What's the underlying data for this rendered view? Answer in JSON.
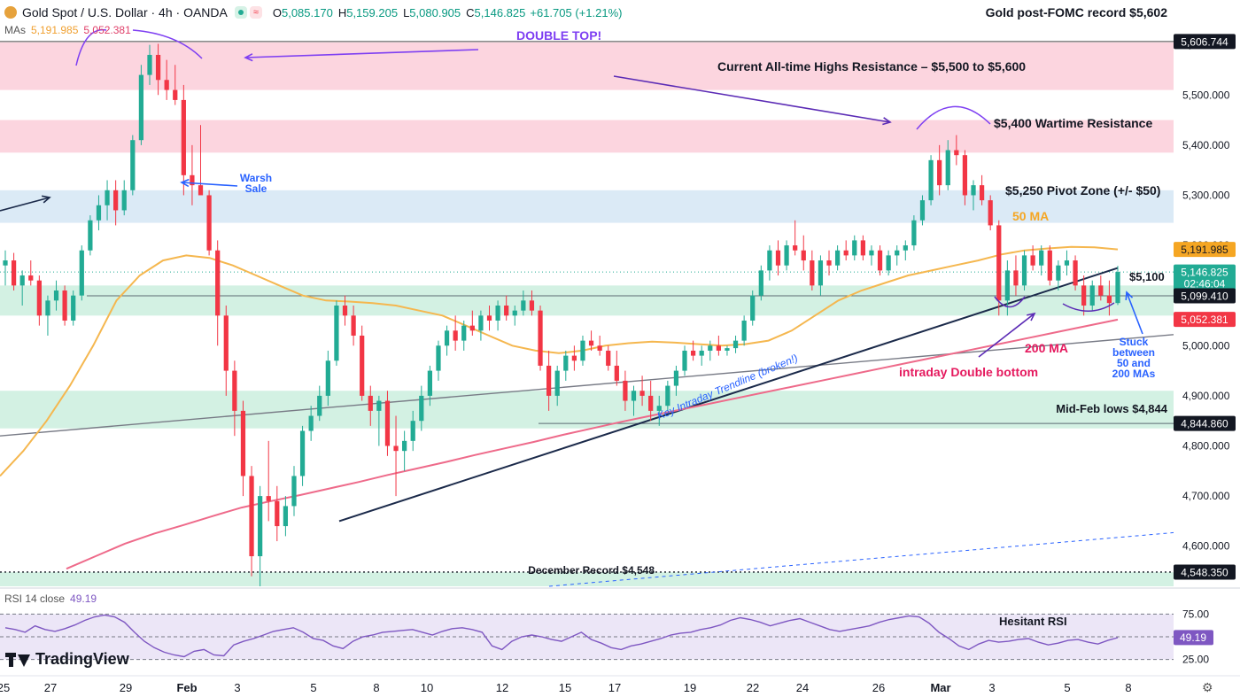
{
  "header": {
    "symbol": "Gold Spot / U.S. Dollar · 4h · OANDA",
    "open_label": "O",
    "open": "5,085.170",
    "high_label": "H",
    "high": "5,159.205",
    "low_label": "L",
    "low": "5,080.905",
    "close_label": "C",
    "close": "5,146.825",
    "change": "+61.705 (+1.21%)",
    "right_title": "Gold post-FOMC record $5,602"
  },
  "mas_legend": {
    "label": "MAs",
    "ma50": "5,191.985",
    "ma200": "5,052.381"
  },
  "rsi_legend": {
    "label": "RSI 14 close",
    "value": "49.19"
  },
  "branding": {
    "name": "TradingView"
  },
  "colors": {
    "up": "#22ab94",
    "down": "#f23645",
    "ma50": "#f5b74f",
    "ma200": "#ee6a8a",
    "resistance_zone": "#fcd5df",
    "pivot_zone": "#dbeaf6",
    "support_zone": "#d3f1e3",
    "rsi": "#7e57c2",
    "rsi_band": "#ece6f7"
  },
  "chart_data": {
    "type": "candlestick",
    "title": "Gold Spot / U.S. Dollar · 4h · OANDA",
    "y_axis": {
      "min": 4520,
      "max": 5640,
      "ticks": [
        4600,
        4700,
        4800,
        4900,
        5000,
        5100,
        5200,
        5300,
        5400,
        5500,
        5600
      ],
      "tick_labels": [
        "4,600.000",
        "4,700.000",
        "4,800.000",
        "4,900.000",
        "5,000.000",
        "5,100.000",
        "5,200.000",
        "5,300.000",
        "5,400.000",
        "5,500.000",
        "5,600.000"
      ]
    },
    "x_axis": {
      "labels": [
        "25",
        "27",
        "29",
        "Feb",
        "3",
        "5",
        "8",
        "10",
        "12",
        "15",
        "17",
        "19",
        "22",
        "24",
        "26",
        "Mar",
        "3",
        "5",
        "8"
      ]
    },
    "price_tags": [
      {
        "label": "5,606.744",
        "value": 5606.744,
        "kind": "dark"
      },
      {
        "label": "5,191.985",
        "value": 5191.985,
        "kind": "ma50"
      },
      {
        "label": "5,146.825",
        "sublabel": "02:46:04",
        "value": 5146.825,
        "kind": "last"
      },
      {
        "label": "5,099.410",
        "value": 5099.41,
        "kind": "dark"
      },
      {
        "label": "5,052.381",
        "value": 5052.381,
        "kind": "ma200"
      },
      {
        "label": "4,844.860",
        "value": 4844.86,
        "kind": "dark"
      },
      {
        "label": "4,548.350",
        "value": 4548.35,
        "kind": "dark"
      }
    ],
    "zones": [
      {
        "name": "Current All-time Highs Resistance",
        "from": 5510,
        "to": 5605,
        "kind": "resistance"
      },
      {
        "name": "$5,400 Wartime Resistance",
        "from": 5385,
        "to": 5450,
        "kind": "resistance"
      },
      {
        "name": "$5,250 Pivot Zone",
        "from": 5245,
        "to": 5310,
        "kind": "pivot"
      },
      {
        "name": "$5,100 zone",
        "from": 5060,
        "to": 5120,
        "kind": "support"
      },
      {
        "name": "Mid-Feb lows zone",
        "from": 4835,
        "to": 4910,
        "kind": "support"
      },
      {
        "name": "December Record zone",
        "from": 4520,
        "to": 4548,
        "kind": "support"
      }
    ],
    "candles": [
      [
        5160,
        5190,
        5120,
        5170
      ],
      [
        5170,
        5185,
        5110,
        5120
      ],
      [
        5120,
        5150,
        5080,
        5140
      ],
      [
        5140,
        5170,
        5120,
        5130
      ],
      [
        5130,
        5140,
        5040,
        5060
      ],
      [
        5060,
        5100,
        5020,
        5090
      ],
      [
        5090,
        5130,
        5070,
        5110
      ],
      [
        5110,
        5120,
        5040,
        5050
      ],
      [
        5050,
        5110,
        5040,
        5100
      ],
      [
        5100,
        5200,
        5090,
        5190
      ],
      [
        5190,
        5260,
        5180,
        5250
      ],
      [
        5250,
        5300,
        5230,
        5280
      ],
      [
        5280,
        5330,
        5250,
        5310
      ],
      [
        5310,
        5330,
        5240,
        5270
      ],
      [
        5270,
        5330,
        5260,
        5310
      ],
      [
        5310,
        5420,
        5300,
        5410
      ],
      [
        5410,
        5560,
        5400,
        5540
      ],
      [
        5540,
        5600,
        5520,
        5580
      ],
      [
        5580,
        5602,
        5500,
        5530
      ],
      [
        5530,
        5570,
        5490,
        5510
      ],
      [
        5510,
        5560,
        5480,
        5490
      ],
      [
        5490,
        5520,
        5300,
        5340
      ],
      [
        5340,
        5400,
        5280,
        5320
      ],
      [
        5320,
        5440,
        5310,
        5300
      ],
      [
        5300,
        5310,
        5180,
        5190
      ],
      [
        5190,
        5210,
        5000,
        5060
      ],
      [
        5060,
        5080,
        4900,
        4950
      ],
      [
        4950,
        4970,
        4820,
        4870
      ],
      [
        4870,
        4890,
        4700,
        4740
      ],
      [
        4740,
        4760,
        4540,
        4580
      ],
      [
        4580,
        4720,
        4520,
        4700
      ],
      [
        4700,
        4810,
        4650,
        4690
      ],
      [
        4690,
        4720,
        4610,
        4640
      ],
      [
        4640,
        4700,
        4620,
        4680
      ],
      [
        4680,
        4760,
        4660,
        4740
      ],
      [
        4740,
        4840,
        4720,
        4830
      ],
      [
        4830,
        4880,
        4810,
        4860
      ],
      [
        4860,
        4920,
        4850,
        4900
      ],
      [
        4900,
        4990,
        4880,
        4970
      ],
      [
        4970,
        5090,
        4960,
        5080
      ],
      [
        5080,
        5100,
        5040,
        5060
      ],
      [
        5060,
        5080,
        5000,
        5020
      ],
      [
        5020,
        5040,
        4890,
        4900
      ],
      [
        4900,
        4920,
        4840,
        4870
      ],
      [
        4870,
        4900,
        4800,
        4890
      ],
      [
        4890,
        4910,
        4780,
        4800
      ],
      [
        4800,
        4860,
        4700,
        4790
      ],
      [
        4790,
        4830,
        4750,
        4810
      ],
      [
        4810,
        4870,
        4790,
        4850
      ],
      [
        4850,
        4920,
        4830,
        4900
      ],
      [
        4900,
        4960,
        4880,
        4950
      ],
      [
        4950,
        5010,
        4930,
        5000
      ],
      [
        5000,
        5040,
        4980,
        5030
      ],
      [
        5030,
        5060,
        4990,
        5010
      ],
      [
        5010,
        5050,
        4990,
        5040
      ],
      [
        5040,
        5070,
        5020,
        5030
      ],
      [
        5030,
        5070,
        5010,
        5060
      ],
      [
        5060,
        5080,
        5030,
        5050
      ],
      [
        5050,
        5090,
        5030,
        5080
      ],
      [
        5080,
        5100,
        5050,
        5060
      ],
      [
        5060,
        5080,
        5040,
        5070
      ],
      [
        5070,
        5110,
        5060,
        5090
      ],
      [
        5090,
        5110,
        5060,
        5070
      ],
      [
        5070,
        5080,
        4950,
        4960
      ],
      [
        4960,
        4990,
        4870,
        4900
      ],
      [
        4900,
        4960,
        4880,
        4950
      ],
      [
        4950,
        4990,
        4930,
        4980
      ],
      [
        4980,
        5000,
        4950,
        4970
      ],
      [
        4970,
        5020,
        4960,
        5010
      ],
      [
        5010,
        5030,
        4990,
        5000
      ],
      [
        5000,
        5020,
        4980,
        4990
      ],
      [
        4990,
        5000,
        4950,
        4960
      ],
      [
        4960,
        4990,
        4920,
        4930
      ],
      [
        4930,
        4950,
        4870,
        4890
      ],
      [
        4890,
        4920,
        4860,
        4910
      ],
      [
        4910,
        4940,
        4880,
        4900
      ],
      [
        4900,
        4930,
        4850,
        4870
      ],
      [
        4870,
        4900,
        4840,
        4880
      ],
      [
        4880,
        4930,
        4870,
        4920
      ],
      [
        4920,
        4960,
        4900,
        4950
      ],
      [
        4950,
        5000,
        4940,
        4990
      ],
      [
        4990,
        5010,
        4970,
        4980
      ],
      [
        4980,
        5000,
        4960,
        4990
      ],
      [
        4990,
        5010,
        4970,
        5000
      ],
      [
        5000,
        5020,
        4980,
        4990
      ],
      [
        4990,
        5000,
        4980,
        4995
      ],
      [
        4995,
        5020,
        4985,
        5010
      ],
      [
        5010,
        5060,
        5000,
        5050
      ],
      [
        5050,
        5110,
        5040,
        5100
      ],
      [
        5100,
        5160,
        5090,
        5150
      ],
      [
        5150,
        5200,
        5130,
        5190
      ],
      [
        5190,
        5210,
        5140,
        5160
      ],
      [
        5160,
        5210,
        5150,
        5200
      ],
      [
        5200,
        5250,
        5180,
        5190
      ],
      [
        5190,
        5220,
        5150,
        5170
      ],
      [
        5170,
        5190,
        5110,
        5120
      ],
      [
        5120,
        5180,
        5100,
        5170
      ],
      [
        5170,
        5190,
        5140,
        5160
      ],
      [
        5160,
        5200,
        5150,
        5190
      ],
      [
        5190,
        5210,
        5170,
        5180
      ],
      [
        5180,
        5220,
        5170,
        5210
      ],
      [
        5210,
        5220,
        5170,
        5180
      ],
      [
        5180,
        5200,
        5160,
        5190
      ],
      [
        5190,
        5200,
        5140,
        5150
      ],
      [
        5150,
        5190,
        5140,
        5180
      ],
      [
        5180,
        5200,
        5160,
        5190
      ],
      [
        5190,
        5210,
        5170,
        5200
      ],
      [
        5200,
        5260,
        5190,
        5250
      ],
      [
        5250,
        5300,
        5240,
        5290
      ],
      [
        5290,
        5380,
        5280,
        5370
      ],
      [
        5370,
        5400,
        5300,
        5320
      ],
      [
        5320,
        5410,
        5310,
        5390
      ],
      [
        5390,
        5420,
        5360,
        5380
      ],
      [
        5380,
        5390,
        5280,
        5300
      ],
      [
        5300,
        5330,
        5270,
        5320
      ],
      [
        5320,
        5340,
        5280,
        5290
      ],
      [
        5290,
        5300,
        5230,
        5240
      ],
      [
        5240,
        5250,
        5060,
        5090
      ],
      [
        5090,
        5170,
        5060,
        5150
      ],
      [
        5150,
        5180,
        5100,
        5120
      ],
      [
        5120,
        5190,
        5110,
        5180
      ],
      [
        5180,
        5200,
        5150,
        5160
      ],
      [
        5160,
        5200,
        5140,
        5190
      ],
      [
        5190,
        5200,
        5120,
        5130
      ],
      [
        5130,
        5170,
        5110,
        5160
      ],
      [
        5160,
        5190,
        5140,
        5170
      ],
      [
        5170,
        5180,
        5110,
        5120
      ],
      [
        5120,
        5140,
        5060,
        5080
      ],
      [
        5080,
        5130,
        5070,
        5120
      ],
      [
        5120,
        5140,
        5090,
        5100
      ],
      [
        5100,
        5130,
        5060,
        5085
      ],
      [
        5085,
        5159,
        5081,
        5147
      ]
    ],
    "ma50": [
      4740,
      4790,
      4850,
      4920,
      5000,
      5090,
      5140,
      5170,
      5180,
      5175,
      5160,
      5140,
      5120,
      5100,
      5090,
      5088,
      5085,
      5080,
      5070,
      5060,
      5040,
      5020,
      5000,
      4990,
      4985,
      4990,
      5000,
      5005,
      5008,
      5006,
      5003,
      5000,
      5003,
      5010,
      5030,
      5060,
      5090,
      5110,
      5125,
      5140,
      5150,
      5160,
      5170,
      5182,
      5190,
      5194,
      5197,
      5196,
      5192
    ],
    "ma200": [
      4555,
      4580,
      4605,
      4625,
      4642,
      4660,
      4677,
      4690,
      4702,
      4715,
      4728,
      4742,
      4755,
      4768,
      4782,
      4795,
      4808,
      4822,
      4835,
      4848,
      4860,
      4872,
      4884,
      4896,
      4908,
      4920,
      4932,
      4944,
      4956,
      4968,
      4980,
      4992,
      5004,
      5016,
      5028,
      5040,
      5052
    ],
    "annotations": [
      {
        "text": "DOUBLE TOP!",
        "color": "#7e3ff2"
      },
      {
        "text": "Current All-time Highs Resistance – $5,500 to $5,600",
        "color": "#131722"
      },
      {
        "text": "$5,400 Wartime Resistance",
        "color": "#131722"
      },
      {
        "text": "$5,250 Pivot Zone (+/- $50)",
        "color": "#131722"
      },
      {
        "text": "50 MA",
        "color": "#f5a623"
      },
      {
        "text": "$5,100",
        "color": "#131722"
      },
      {
        "text": "200 MA",
        "color": "#e5195e"
      },
      {
        "text": "intraday Double bottom",
        "color": "#e5195e"
      },
      {
        "text": "Stuck between 50 and 200 MAs",
        "color": "#2962ff"
      },
      {
        "text": "Mid-Feb lows $4,844",
        "color": "#131722"
      },
      {
        "text": "December Record $4,548",
        "color": "#131722"
      },
      {
        "text": "Key Intraday Trendline (broken!)",
        "color": "#2962ff"
      },
      {
        "text": "Warsh Sale",
        "color": "#2962ff"
      },
      {
        "text": "Hesitant RSI",
        "color": "#131722"
      }
    ],
    "rsi": {
      "levels": [
        75,
        50,
        25
      ],
      "level_labels": [
        "75.00",
        "25.00"
      ],
      "last": 49.19,
      "values": [
        60,
        58,
        55,
        62,
        58,
        56,
        59,
        63,
        68,
        72,
        74,
        72,
        66,
        55,
        45,
        38,
        33,
        30,
        28,
        34,
        36,
        30,
        29,
        41,
        45,
        48,
        52,
        56,
        58,
        60,
        55,
        48,
        46,
        40,
        37,
        45,
        50,
        52,
        55,
        56,
        57,
        58,
        55,
        52,
        56,
        59,
        60,
        58,
        55,
        40,
        36,
        45,
        50,
        52,
        50,
        47,
        45,
        50,
        55,
        47,
        43,
        38,
        36,
        40,
        42,
        45,
        48,
        52,
        54,
        55,
        58,
        60,
        63,
        68,
        71,
        69,
        66,
        62,
        65,
        68,
        70,
        66,
        62,
        58,
        56,
        58,
        60,
        62,
        66,
        69,
        71,
        73,
        72,
        65,
        55,
        48,
        40,
        36,
        42,
        46,
        44,
        45,
        47,
        48,
        44,
        41,
        43,
        46,
        47,
        44,
        42,
        46,
        49
      ]
    }
  }
}
